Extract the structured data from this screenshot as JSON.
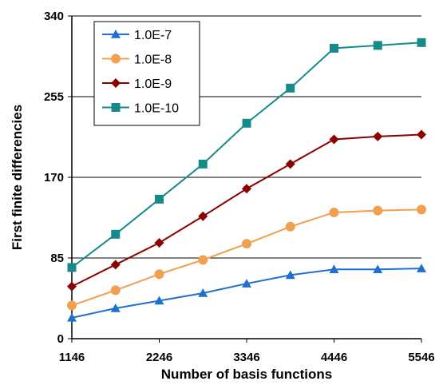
{
  "chart_data": {
    "type": "line",
    "title": "",
    "xlabel": "Number of basis functions",
    "ylabel": "First finite differencies",
    "xlim": [
      1146,
      5546
    ],
    "ylim": [
      0,
      340
    ],
    "x_ticks": [
      "1146",
      "2246",
      "3346",
      "4446",
      "5546"
    ],
    "y_ticks": [
      "0",
      "85",
      "170",
      "255",
      "340"
    ],
    "x_tick_values": [
      1146,
      2246,
      3346,
      4446,
      5546
    ],
    "y_tick_values": [
      0,
      85,
      170,
      255,
      340
    ],
    "grid": "horizontal",
    "legend_position": "top-left",
    "x": [
      1146,
      1696,
      2246,
      2796,
      3346,
      3896,
      4446,
      4996,
      5546
    ],
    "series": [
      {
        "name": "1.0E-7",
        "color": "#1f6fd1",
        "marker": "triangle",
        "values": [
          22,
          32,
          40,
          48,
          58,
          67,
          73,
          73,
          74
        ]
      },
      {
        "name": "1.0E-8",
        "color": "#f0a050",
        "marker": "circle",
        "values": [
          35,
          51,
          68,
          83,
          100,
          118,
          133,
          135,
          136
        ]
      },
      {
        "name": "1.0E-9",
        "color": "#8b0000",
        "marker": "diamond",
        "values": [
          55,
          78,
          101,
          129,
          158,
          184,
          210,
          213,
          215
        ]
      },
      {
        "name": "1.0E-10",
        "color": "#168a8a",
        "marker": "square",
        "values": [
          75,
          110,
          147,
          184,
          227,
          264,
          306,
          309,
          312
        ]
      }
    ]
  }
}
